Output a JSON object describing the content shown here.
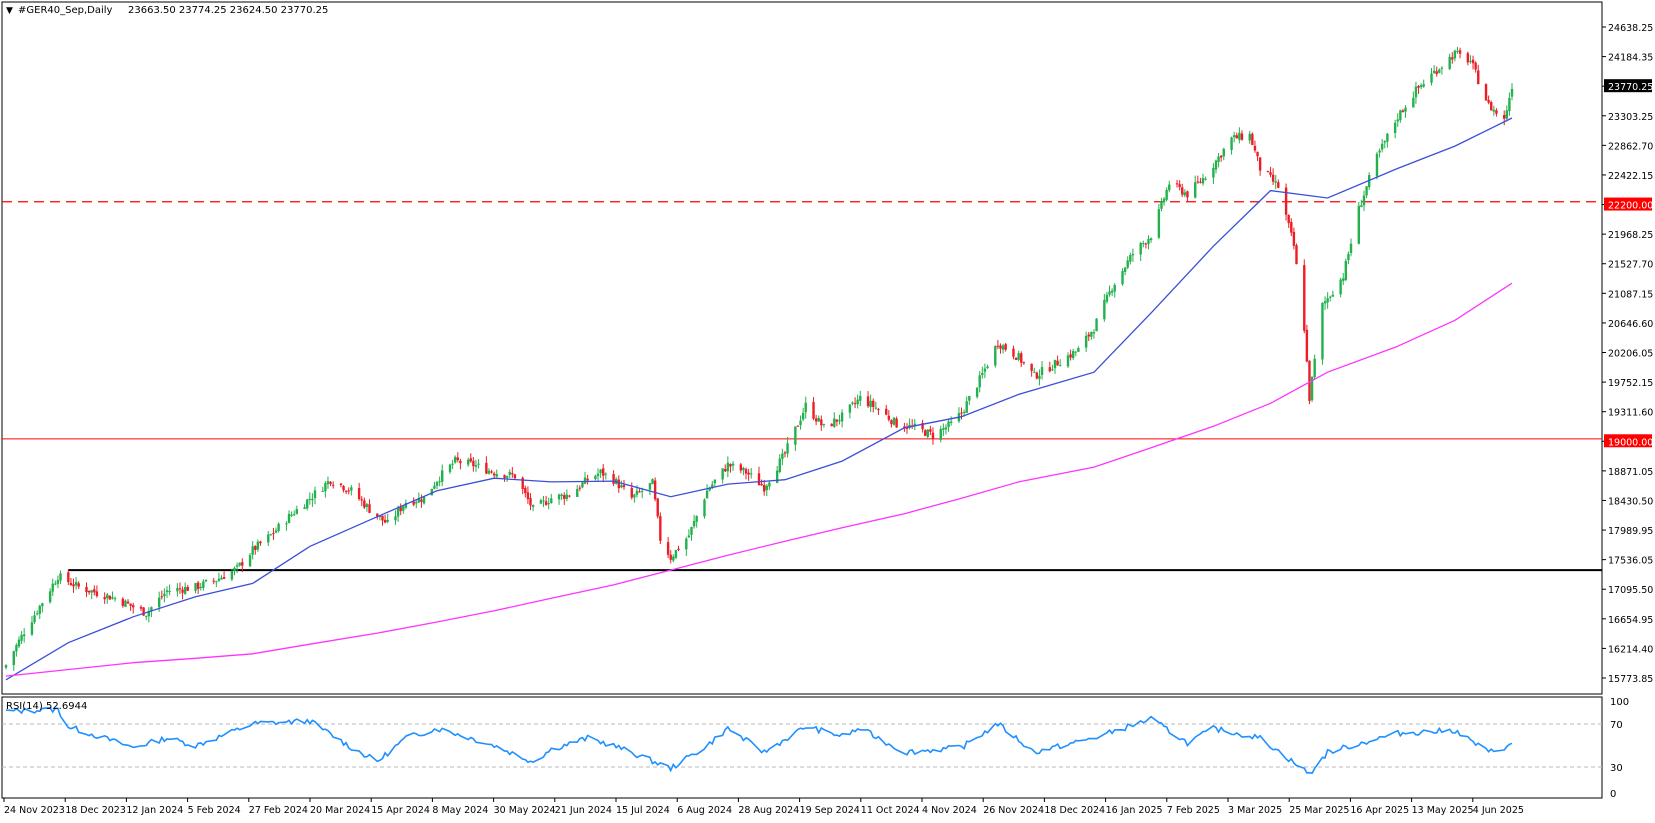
{
  "header": {
    "symbol_info": "#GER40_Sep,Daily",
    "ohlc": "23663.50 23774.25 23624.50 23770.25",
    "menu_glyph": "▼"
  },
  "rsi_panel": {
    "label": "RSI(14) 52.6944",
    "levels": [
      "100",
      "70",
      "30",
      "0"
    ]
  },
  "price_axis": {
    "ticks": [
      "24638.25",
      "24184.35",
      "23770.25",
      "23303.25",
      "22862.70",
      "22422.15",
      "22200.00",
      "21968.25",
      "21527.70",
      "21087.15",
      "20646.60",
      "20206.05",
      "19752.15",
      "19311.60",
      "19000.00",
      "18871.05",
      "18430.50",
      "17989.95",
      "17536.05",
      "17095.50",
      "16654.95",
      "16214.40",
      "15773.85"
    ],
    "current_price_label": "23770.25",
    "level_labels": [
      "22200.00",
      "19000.00"
    ]
  },
  "time_axis": {
    "labels": [
      "24 Nov 2023",
      "18 Dec 2023",
      "12 Jan 2024",
      "5 Feb 2024",
      "27 Feb 2024",
      "20 Mar 2024",
      "15 Apr 2024",
      "8 May 2024",
      "30 May 2024",
      "21 Jun 2024",
      "15 Jul 2024",
      "6 Aug 2024",
      "28 Aug 2024",
      "19 Sep 2024",
      "11 Oct 2024",
      "4 Nov 2024",
      "26 Nov 2024",
      "18 Dec 2024",
      "16 Jan 2025",
      "7 Feb 2025",
      "3 Mar 2025",
      "25 Mar 2025",
      "16 Apr 2025",
      "13 May 2025",
      "4 Jun 2025"
    ]
  },
  "colors": {
    "bull": "#22b14c",
    "bear": "#ee1c24",
    "ma_fast": "#3b4fd8",
    "ma_slow": "#ff33ff",
    "rsi_line": "#1e90ff",
    "level_22200": "#ff0000",
    "level_19000": "#ff0000",
    "level_17230": "#000000",
    "current_price_bg": "#000000"
  },
  "chart_data": [
    {
      "type": "candlestick",
      "title": "#GER40_Sep,Daily",
      "y_range": [
        15773.85,
        24638.25
      ],
      "x_range": [
        "24 Nov 2023",
        "26 Jun 2025"
      ],
      "last_close": 23770.25,
      "horizontal_levels": [
        {
          "value": 22200.0,
          "style": "dashed",
          "color": "red"
        },
        {
          "value": 19000.0,
          "style": "solid",
          "color": "red"
        },
        {
          "value": 17230.0,
          "style": "solid",
          "color": "black",
          "start": "18 Dec 2023"
        }
      ],
      "close_path": [
        [
          "24 Nov 2023",
          15950
        ],
        [
          "1 Dec 2023",
          16400
        ],
        [
          "8 Dec 2023",
          16800
        ],
        [
          "14 Dec 2023",
          17150
        ],
        [
          "22 Dec 2023",
          17000
        ],
        [
          "5 Jan 2024",
          16850
        ],
        [
          "17 Jan 2024",
          16650
        ],
        [
          "25 Jan 2024",
          16950
        ],
        [
          "5 Feb 2024",
          17000
        ],
        [
          "13 Feb 2024",
          17100
        ],
        [
          "21 Feb 2024",
          17250
        ],
        [
          "27 Feb 2024",
          17500
        ],
        [
          "5 Mar 2024",
          17700
        ],
        [
          "12 Mar 2024",
          17950
        ],
        [
          "20 Mar 2024",
          18200
        ],
        [
          "28 Mar 2024",
          18450
        ],
        [
          "5 Apr 2024",
          18300
        ],
        [
          "12 Apr 2024",
          18050
        ],
        [
          "19 Apr 2024",
          17850
        ],
        [
          "26 Apr 2024",
          18150
        ],
        [
          "3 May 2024",
          18200
        ],
        [
          "8 May 2024",
          18450
        ],
        [
          "15 May 2024",
          18700
        ],
        [
          "22 May 2024",
          18650
        ],
        [
          "30 May 2024",
          18550
        ],
        [
          "7 Jun 2024",
          18500
        ],
        [
          "14 Jun 2024",
          18050
        ],
        [
          "21 Jun 2024",
          18200
        ],
        [
          "28 Jun 2024",
          18250
        ],
        [
          "5 Jul 2024",
          18450
        ],
        [
          "10 Jul 2024",
          18550
        ],
        [
          "15 Jul 2024",
          18450
        ],
        [
          "22 Jul 2024",
          18200
        ],
        [
          "30 Jul 2024",
          18400
        ],
        [
          "2 Aug 2024",
          17650
        ],
        [
          "6 Aug 2024",
          17400
        ],
        [
          "13 Aug 2024",
          17700
        ],
        [
          "20 Aug 2024",
          18300
        ],
        [
          "28 Aug 2024",
          18650
        ],
        [
          "4 Sep 2024",
          18550
        ],
        [
          "11 Sep 2024",
          18350
        ],
        [
          "19 Sep 2024",
          18800
        ],
        [
          "27 Sep 2024",
          19450
        ],
        [
          "4 Oct 2024",
          19150
        ],
        [
          "11 Oct 2024",
          19300
        ],
        [
          "18 Oct 2024",
          19550
        ],
        [
          "25 Oct 2024",
          19400
        ],
        [
          "1 Nov 2024",
          19200
        ],
        [
          "8 Nov 2024",
          19150
        ],
        [
          "15 Nov 2024",
          19050
        ],
        [
          "22 Nov 2024",
          19200
        ],
        [
          "26 Nov 2024",
          19350
        ],
        [
          "3 Dec 2024",
          19800
        ],
        [
          "10 Dec 2024",
          20300
        ],
        [
          "18 Dec 2024",
          20100
        ],
        [
          "24 Dec 2024",
          19850
        ],
        [
          "3 Jan 2025",
          20050
        ],
        [
          "10 Jan 2025",
          20200
        ],
        [
          "16 Jan 2025",
          20500
        ],
        [
          "23 Jan 2025",
          21050
        ],
        [
          "31 Jan 2025",
          21500
        ],
        [
          "7 Feb 2025",
          21750
        ],
        [
          "14 Feb 2025",
          22450
        ],
        [
          "21 Feb 2025",
          22300
        ],
        [
          "28 Feb 2025",
          22550
        ],
        [
          "3 Mar 2025",
          22700
        ],
        [
          "10 Mar 2025",
          23050
        ],
        [
          "17 Mar 2025",
          23100
        ],
        [
          "21 Mar 2025",
          22650
        ],
        [
          "28 Mar 2025",
          22400
        ],
        [
          "3 Apr 2025",
          21600
        ],
        [
          "7 Apr 2025",
          20500
        ],
        [
          "9 Apr 2025",
          19550
        ],
        [
          "14 Apr 2025",
          20800
        ],
        [
          "22 Apr 2025",
          21200
        ],
        [
          "28 Apr 2025",
          22100
        ],
        [
          "5 May 2025",
          22800
        ],
        [
          "13 May 2025",
          23350
        ],
        [
          "20 May 2025",
          23700
        ],
        [
          "27 May 2025",
          23950
        ],
        [
          "4 Jun 2025",
          24200
        ],
        [
          "10 Jun 2025",
          24100
        ],
        [
          "17 Jun 2025",
          23500
        ],
        [
          "23 Jun 2025",
          23300
        ],
        [
          "26 Jun 2025",
          23770
        ]
      ],
      "series": [
        {
          "name": "",
          "kind": "moving_average_fast",
          "values": [
            [
              "24 Nov 2023",
              15750
            ],
            [
              "18 Dec 2023",
              16250
            ],
            [
              "12 Jan 2024",
              16600
            ],
            [
              "5 Feb 2024",
              16870
            ],
            [
              "27 Feb 2024",
              17050
            ],
            [
              "20 Mar 2024",
              17550
            ],
            [
              "15 Apr 2024",
              17950
            ],
            [
              "8 May 2024",
              18300
            ],
            [
              "30 May 2024",
              18470
            ],
            [
              "21 Jun 2024",
              18420
            ],
            [
              "15 Jul 2024",
              18430
            ],
            [
              "6 Aug 2024",
              18220
            ],
            [
              "28 Aug 2024",
              18390
            ],
            [
              "19 Sep 2024",
              18450
            ],
            [
              "11 Oct 2024",
              18700
            ],
            [
              "4 Nov 2024",
              19150
            ],
            [
              "26 Nov 2024",
              19300
            ],
            [
              "18 Dec 2024",
              19600
            ],
            [
              "16 Jan 2025",
              19900
            ],
            [
              "7 Feb 2025",
              20700
            ],
            [
              "3 Mar 2025",
              21600
            ],
            [
              "25 Mar 2025",
              22350
            ],
            [
              "16 Apr 2025",
              22250
            ],
            [
              "13 May 2025",
              22650
            ],
            [
              "4 Jun 2025",
              22950
            ],
            [
              "26 Jun 2025",
              23330
            ]
          ]
        },
        {
          "name": "",
          "kind": "moving_average_slow",
          "values": [
            [
              "24 Nov 2023",
              15800
            ],
            [
              "12 Jan 2024",
              15980
            ],
            [
              "5 Feb 2024",
              16040
            ],
            [
              "27 Feb 2024",
              16100
            ],
            [
              "20 Mar 2024",
              16230
            ],
            [
              "15 Apr 2024",
              16380
            ],
            [
              "8 May 2024",
              16530
            ],
            [
              "30 May 2024",
              16680
            ],
            [
              "21 Jun 2024",
              16850
            ],
            [
              "15 Jul 2024",
              17030
            ],
            [
              "6 Aug 2024",
              17230
            ],
            [
              "28 Aug 2024",
              17430
            ],
            [
              "19 Sep 2024",
              17620
            ],
            [
              "11 Oct 2024",
              17800
            ],
            [
              "4 Nov 2024",
              17990
            ],
            [
              "26 Nov 2024",
              18200
            ],
            [
              "18 Dec 2024",
              18420
            ],
            [
              "16 Jan 2025",
              18620
            ],
            [
              "7 Feb 2025",
              18880
            ],
            [
              "3 Mar 2025",
              19170
            ],
            [
              "25 Mar 2025",
              19480
            ],
            [
              "16 Apr 2025",
              19900
            ],
            [
              "13 May 2025",
              20250
            ],
            [
              "4 Jun 2025",
              20600
            ],
            [
              "26 Jun 2025",
              21100
            ]
          ]
        }
      ]
    },
    {
      "type": "line",
      "title": "RSI(14) 52.6944",
      "y_range": [
        0,
        100
      ],
      "reference_levels": [
        70,
        30
      ],
      "series": [
        {
          "name": "",
          "values": [
            [
              "24 Nov 2023",
              88
            ],
            [
              "14 Dec 2023",
              90
            ],
            [
              "18 Dec 2023",
              72
            ],
            [
              "12 Jan 2024",
              50
            ],
            [
              "25 Jan 2024",
              60
            ],
            [
              "5 Feb 2024",
              52
            ],
            [
              "15 Feb 2024",
              62
            ],
            [
              "27 Feb 2024",
              75
            ],
            [
              "20 Mar 2024",
              78
            ],
            [
              "5 Apr 2024",
              50
            ],
            [
              "15 Apr 2024",
              35
            ],
            [
              "26 Apr 2024",
              60
            ],
            [
              "8 May 2024",
              70
            ],
            [
              "15 May 2024",
              65
            ],
            [
              "30 May 2024",
              52
            ],
            [
              "14 Jun 2024",
              35
            ],
            [
              "21 Jun 2024",
              48
            ],
            [
              "5 Jul 2024",
              60
            ],
            [
              "15 Jul 2024",
              52
            ],
            [
              "6 Aug 2024",
              28
            ],
            [
              "20 Aug 2024",
              52
            ],
            [
              "28 Aug 2024",
              70
            ],
            [
              "11 Sep 2024",
              45
            ],
            [
              "27 Sep 2024",
              72
            ],
            [
              "11 Oct 2024",
              62
            ],
            [
              "18 Oct 2024",
              70
            ],
            [
              "4 Nov 2024",
              45
            ],
            [
              "26 Nov 2024",
              50
            ],
            [
              "10 Dec 2024",
              75
            ],
            [
              "24 Dec 2024",
              45
            ],
            [
              "16 Jan 2025",
              60
            ],
            [
              "7 Feb 2025",
              80
            ],
            [
              "21 Feb 2025",
              55
            ],
            [
              "3 Mar 2025",
              70
            ],
            [
              "21 Mar 2025",
              60
            ],
            [
              "9 Apr 2025",
              22
            ],
            [
              "16 Apr 2025",
              45
            ],
            [
              "13 May 2025",
              65
            ],
            [
              "4 Jun 2025",
              68
            ],
            [
              "17 Jun 2025",
              45
            ],
            [
              "26 Jun 2025",
              52.69
            ]
          ]
        }
      ]
    }
  ]
}
